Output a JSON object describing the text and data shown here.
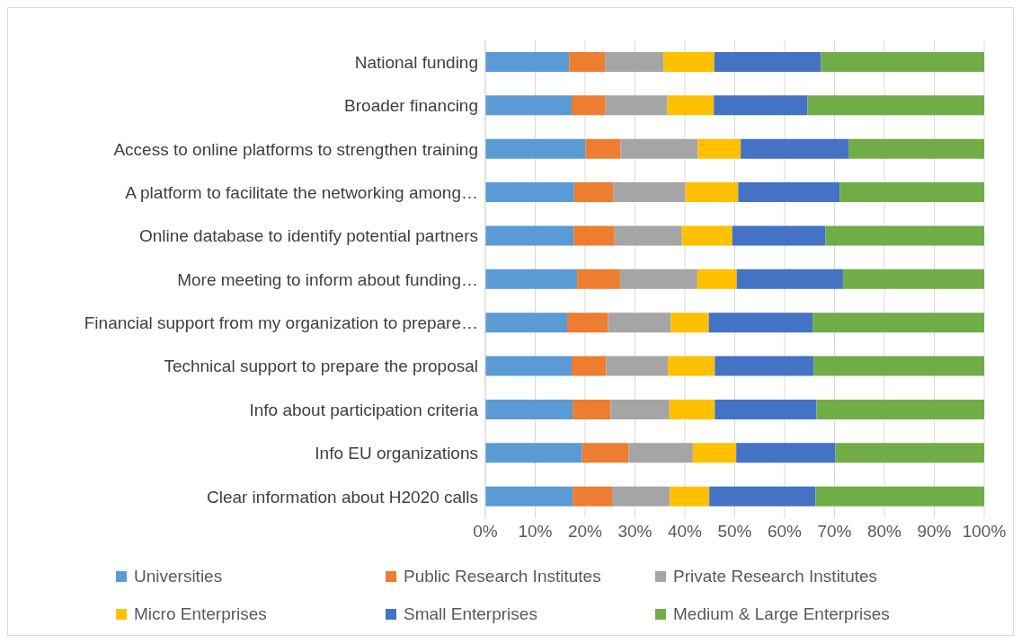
{
  "chart_data": {
    "type": "bar",
    "orientation": "horizontal",
    "stacked": true,
    "categories": [
      "National funding",
      "Broader financing",
      "Access to online platforms to strengthen training",
      "A platform to facilitate the networking among…",
      "Online database to identify potential partners",
      "More meeting to inform about funding…",
      "Financial support from my organization to prepare…",
      "Technical support to prepare the proposal",
      "Info about participation criteria",
      "Info EU organizations",
      "Clear information about H2020 calls"
    ],
    "series": [
      {
        "name": "Universities",
        "color": "#5b9bd5",
        "values": [
          16.8,
          17.3,
          20.1,
          17.8,
          17.7,
          18.4,
          16.4,
          17.3,
          17.5,
          19.4,
          17.5
        ]
      },
      {
        "name": "Public Research Institutes",
        "color": "#ed7d31",
        "values": [
          7.2,
          6.8,
          7.0,
          7.8,
          8.2,
          8.6,
          8.2,
          6.9,
          7.6,
          9.3,
          7.9
        ]
      },
      {
        "name": "Private Research Institutes",
        "color": "#a5a5a5",
        "values": [
          11.7,
          12.4,
          15.5,
          14.5,
          13.5,
          15.5,
          12.6,
          12.4,
          11.8,
          12.9,
          11.6
        ]
      },
      {
        "name": "Micro Enterprises",
        "color": "#ffc000",
        "values": [
          10.2,
          9.3,
          8.6,
          10.6,
          10.1,
          7.9,
          7.6,
          9.4,
          9.1,
          8.7,
          7.9
        ]
      },
      {
        "name": "Small Enterprises",
        "color": "#4472c4",
        "values": [
          21.4,
          18.8,
          21.6,
          20.4,
          18.7,
          21.3,
          20.8,
          19.8,
          20.4,
          19.9,
          21.3
        ]
      },
      {
        "name": "Medium & Large Enterprises",
        "color": "#70ad47",
        "values": [
          32.7,
          35.4,
          27.2,
          28.9,
          31.8,
          28.3,
          34.4,
          34.2,
          33.6,
          29.8,
          33.8
        ]
      }
    ],
    "xlim": [
      0,
      100
    ],
    "xticks": [
      {
        "value": 0,
        "label": "0%"
      },
      {
        "value": 10,
        "label": "10%"
      },
      {
        "value": 20,
        "label": "20%"
      },
      {
        "value": 30,
        "label": "30%"
      },
      {
        "value": 40,
        "label": "40%"
      },
      {
        "value": 50,
        "label": "50%"
      },
      {
        "value": 60,
        "label": "60%"
      },
      {
        "value": 70,
        "label": "70%"
      },
      {
        "value": 80,
        "label": "80%"
      },
      {
        "value": 90,
        "label": "90%"
      },
      {
        "value": 100,
        "label": "100%"
      }
    ],
    "grid": "x",
    "legend": "bottom"
  }
}
